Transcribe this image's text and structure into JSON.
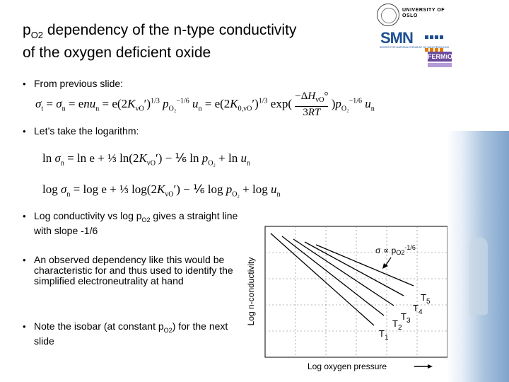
{
  "title": {
    "main_prefix": "p",
    "main_sub": "O2",
    "main_suffix": " dependency of the n-type conductivity",
    "line2": "of the oxygen deficient oxide"
  },
  "logos": {
    "university": "UNIVERSITY OF OSLO",
    "smn": "SMN",
    "smn_subtitle": "SENTER FOR MATERIALVITENSKAP OG NANOTEKNOLOGI",
    "fermio": "FERMiO"
  },
  "bullets": [
    {
      "text": "From previous slide:"
    },
    {
      "text": "Let’s take the logarithm:"
    },
    {
      "text_prefix": "Log conductivity vs log p",
      "text_sub": "O2",
      "text_suffix": " gives a straight line with slope -1/6"
    },
    {
      "text": "An observed dependency like this would be characteristic for and thus used to identify the simplified electroneutrality at hand"
    },
    {
      "text_prefix": "Note the isobar (at constant p",
      "text_sub": "O2",
      "text_suffix": ") for the next slide"
    }
  ],
  "chart_data": {
    "type": "line",
    "xlabel": "Log oxygen pressure",
    "ylabel": "Log n-conductivity",
    "annotation": "σ ∝ p",
    "annotation_sub": "O2",
    "annotation_sup": "-1/6",
    "series": [
      {
        "name": "T1",
        "label": "T",
        "sub": "1"
      },
      {
        "name": "T2",
        "label": "T",
        "sub": "2"
      },
      {
        "name": "T3",
        "label": "T",
        "sub": "3"
      },
      {
        "name": "T4",
        "label": "T",
        "sub": "4"
      },
      {
        "name": "T5",
        "label": "T",
        "sub": "5"
      }
    ]
  }
}
